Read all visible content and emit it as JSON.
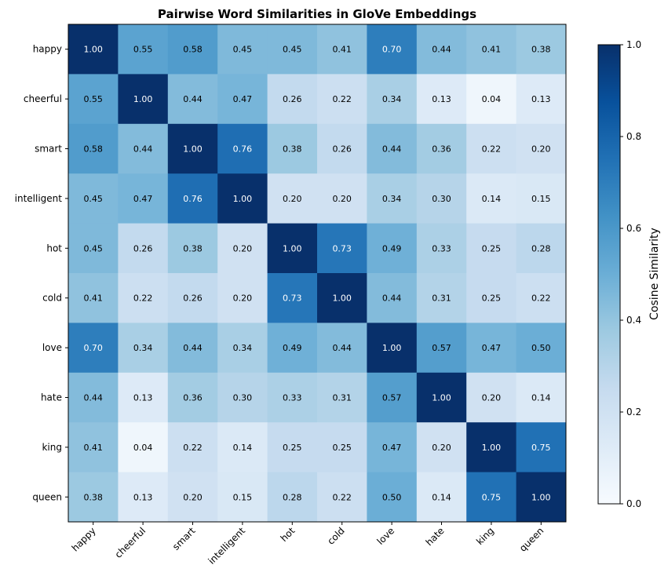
{
  "chart_data": {
    "type": "heatmap",
    "title": "Pairwise Word Similarities in GloVe Embeddings",
    "row_labels": [
      "happy",
      "cheerful",
      "smart",
      "intelligent",
      "hot",
      "cold",
      "love",
      "hate",
      "king",
      "queen"
    ],
    "col_labels": [
      "happy",
      "cheerful",
      "smart",
      "intelligent",
      "hot",
      "cold",
      "love",
      "hate",
      "king",
      "queen"
    ],
    "values": [
      [
        1.0,
        0.55,
        0.58,
        0.45,
        0.45,
        0.41,
        0.7,
        0.44,
        0.41,
        0.38
      ],
      [
        0.55,
        1.0,
        0.44,
        0.47,
        0.26,
        0.22,
        0.34,
        0.13,
        0.04,
        0.13
      ],
      [
        0.58,
        0.44,
        1.0,
        0.76,
        0.38,
        0.26,
        0.44,
        0.36,
        0.22,
        0.2
      ],
      [
        0.45,
        0.47,
        0.76,
        1.0,
        0.2,
        0.2,
        0.34,
        0.3,
        0.14,
        0.15
      ],
      [
        0.45,
        0.26,
        0.38,
        0.2,
        1.0,
        0.73,
        0.49,
        0.33,
        0.25,
        0.28
      ],
      [
        0.41,
        0.22,
        0.26,
        0.2,
        0.73,
        1.0,
        0.44,
        0.31,
        0.25,
        0.22
      ],
      [
        0.7,
        0.34,
        0.44,
        0.34,
        0.49,
        0.44,
        1.0,
        0.57,
        0.47,
        0.5
      ],
      [
        0.44,
        0.13,
        0.36,
        0.3,
        0.33,
        0.31,
        0.57,
        1.0,
        0.2,
        0.14
      ],
      [
        0.41,
        0.04,
        0.22,
        0.14,
        0.25,
        0.25,
        0.47,
        0.2,
        1.0,
        0.75
      ],
      [
        0.38,
        0.13,
        0.2,
        0.15,
        0.28,
        0.22,
        0.5,
        0.14,
        0.75,
        1.0
      ]
    ],
    "colormap": "Blues",
    "colorbar": {
      "label": "Cosine Similarity",
      "range": [
        0.0,
        1.0
      ],
      "ticks": [
        "0.0",
        "0.2",
        "0.4",
        "0.6",
        "0.8",
        "1.0"
      ]
    },
    "annotations": "cell values with 2 decimals",
    "grid": false
  }
}
